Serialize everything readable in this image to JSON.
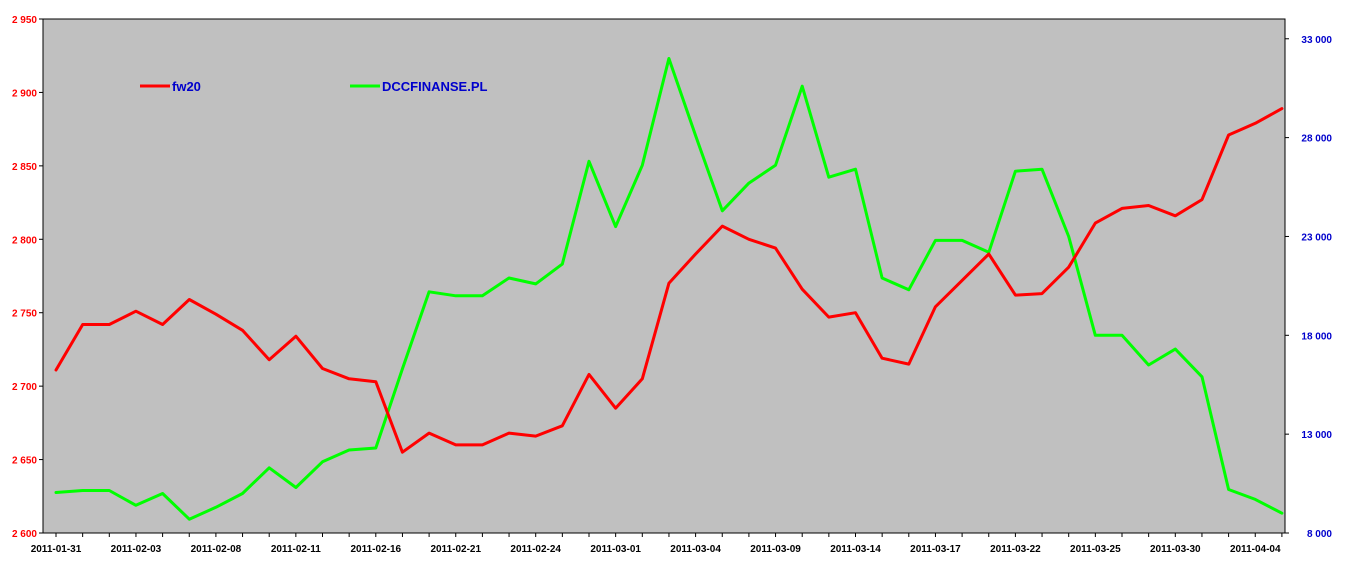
{
  "chart_data": {
    "type": "line",
    "title": "",
    "xlabel": "",
    "ylabel": "",
    "grid": false,
    "plot_background": "#c0c0c0",
    "legend": {
      "placement": "top-left",
      "entries": [
        "fw20",
        "DCCFINANSE.PL"
      ]
    },
    "x": [
      "2011-01-31",
      "2011-02-01",
      "2011-02-02",
      "2011-02-03",
      "2011-02-04",
      "2011-02-07",
      "2011-02-08",
      "2011-02-09",
      "2011-02-10",
      "2011-02-11",
      "2011-02-14",
      "2011-02-15",
      "2011-02-16",
      "2011-02-17",
      "2011-02-18",
      "2011-02-21",
      "2011-02-22",
      "2011-02-23",
      "2011-02-24",
      "2011-02-25",
      "2011-02-28",
      "2011-03-01",
      "2011-03-02",
      "2011-03-03",
      "2011-03-04",
      "2011-03-07",
      "2011-03-08",
      "2011-03-09",
      "2011-03-10",
      "2011-03-11",
      "2011-03-14",
      "2011-03-15",
      "2011-03-16",
      "2011-03-17",
      "2011-03-18",
      "2011-03-21",
      "2011-03-22",
      "2011-03-23",
      "2011-03-24",
      "2011-03-25",
      "2011-03-28",
      "2011-03-29",
      "2011-03-30",
      "2011-03-31",
      "2011-04-01",
      "2011-04-04",
      "2011-04-05"
    ],
    "x_tick_labels": [
      "2011-01-31",
      "2011-02-03",
      "2011-02-08",
      "2011-02-11",
      "2011-02-16",
      "2011-02-21",
      "2011-02-24",
      "2011-03-01",
      "2011-03-04",
      "2011-03-09",
      "2011-03-14",
      "2011-03-17",
      "2011-03-22",
      "2011-03-25",
      "2011-03-30",
      "2011-04-04"
    ],
    "y_left": {
      "ylim": [
        2600,
        2950
      ],
      "ticks": [
        "2 600",
        "2 650",
        "2 700",
        "2 750",
        "2 800",
        "2 850",
        "2 900",
        "2 950"
      ],
      "color": "#ff0000"
    },
    "y_right": {
      "ylim": [
        8000,
        34000
      ],
      "ticks": [
        "8 000",
        "13 000",
        "18 000",
        "23 000",
        "28 000",
        "33 000"
      ],
      "color": "#0000cc"
    },
    "series": [
      {
        "name": "fw20",
        "axis": "left",
        "color": "#ff0000",
        "values": [
          2711,
          2742,
          2742,
          2751,
          2742,
          2759,
          2749,
          2738,
          2718,
          2734,
          2712,
          2705,
          2703,
          2655,
          2668,
          2660,
          2660,
          2668,
          2666,
          2673,
          2708,
          2685,
          2705,
          2770,
          2790,
          2809,
          2800,
          2794,
          2766,
          2747,
          2750,
          2719,
          2715,
          2754,
          2772,
          2790,
          2762,
          2763,
          2781,
          2811,
          2821,
          2823,
          2816,
          2827,
          2871,
          2879,
          2889
        ]
      },
      {
        "name": "DCCFINANSE.PL",
        "axis": "right",
        "color": "#00ff00",
        "values": [
          10050,
          10150,
          10150,
          9400,
          10000,
          8700,
          9300,
          10000,
          11300,
          10300,
          11600,
          12200,
          12300,
          16300,
          20200,
          20000,
          20000,
          20900,
          20600,
          21600,
          26800,
          23500,
          26600,
          32000,
          28100,
          24300,
          25700,
          26600,
          30600,
          26000,
          26400,
          20900,
          20300,
          22800,
          22800,
          22200,
          26300,
          26400,
          23000,
          18000,
          18000,
          16500,
          17300,
          15900,
          10200,
          9700,
          9000
        ]
      }
    ]
  }
}
